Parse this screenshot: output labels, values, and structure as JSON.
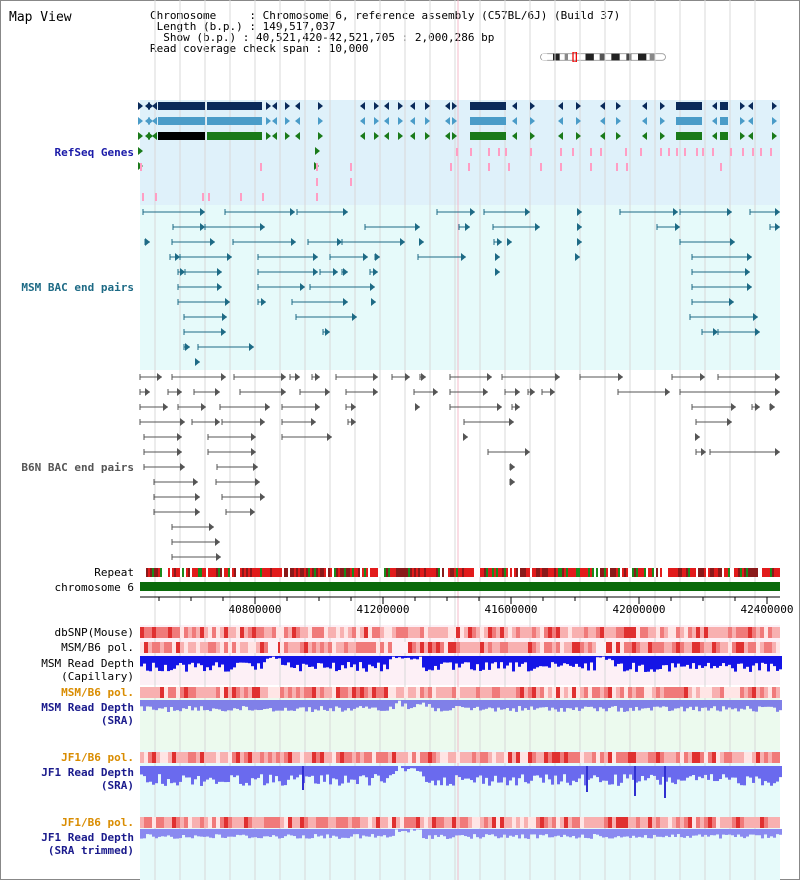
{
  "header": {
    "title": "Map View",
    "info_lines": [
      "Chromosome     : Chromosome 6, reference assembly (C57BL/6J) (Build 37)",
      " Length (b.p.) : 149,517,037",
      "  Show (b.p.) : 40,521,420-42,521,705 : 2,000,286 bp",
      "Read coverage check span : 10,000"
    ]
  },
  "tracks": {
    "refseq": "RefSeq Genes",
    "msm_bac": "MSM BAC end pairs",
    "b6n_bac": "B6N BAC end pairs",
    "repeat": "Repeat",
    "chromosome": "chromosome 6",
    "dbsnp": "dbSNP(Mouse)",
    "msm_b6_pol_1": "MSM/B6 pol.",
    "msm_depth_cap_1": "MSM Read Depth",
    "msm_depth_cap_2": "(Capillary)",
    "msm_b6_pol_2": "MSM/B6 pol.",
    "msm_depth_sra_1": "MSM Read Depth",
    "msm_depth_sra_2": "(SRA)",
    "jf1_b6_pol_1": "JF1/B6 pol.",
    "jf1_depth_sra_1": "JF1 Read Depth",
    "jf1_depth_sra_2": "(SRA)",
    "jf1_b6_pol_2": "JF1/B6 pol.",
    "jf1_depth_trim_1": "JF1 Read Depth",
    "jf1_depth_trim_2": "(SRA trimmed)"
  },
  "axis": {
    "ticks": [
      "40800000",
      "41200000",
      "41600000",
      "42000000",
      "42400000"
    ]
  },
  "colors": {
    "refseq_bg": "#dff1fa",
    "msm_bg": "#e6fafa",
    "b6n_bg": "#ffffff",
    "gene_dark": "#0a2a5a",
    "gene_blue": "#4a9cc8",
    "gene_green": "#1a7a1a",
    "gene_pink": "#ff9ec4",
    "msm_line": "#1d6a85",
    "b6n_line": "#555555",
    "chrom_green": "#0a6a0a",
    "depth_blue": "#1414e6",
    "depth_light": "#7a7af0",
    "pol_red": "#e03030"
  }
}
